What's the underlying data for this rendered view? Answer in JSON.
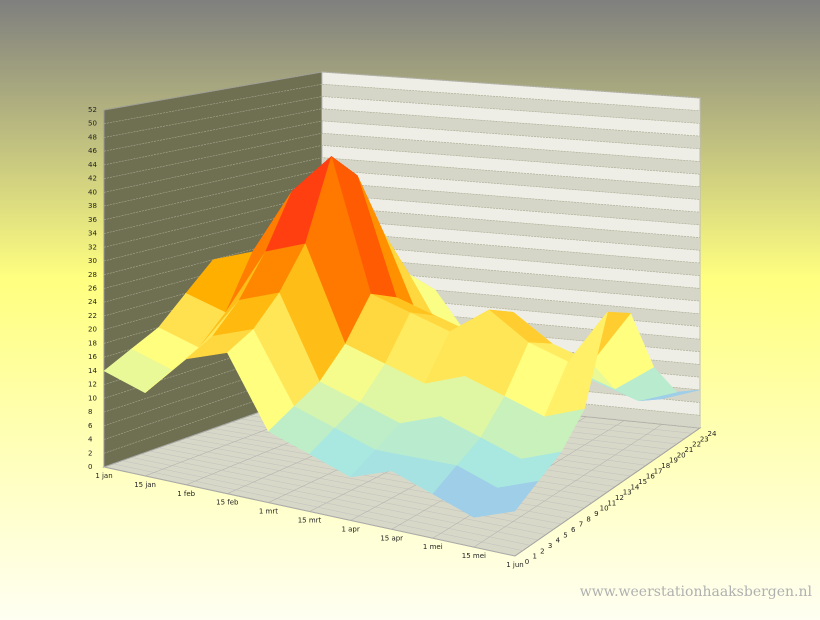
{
  "chart_data": {
    "type": "surface3d",
    "categories": [
      "1 jan",
      "15 jan",
      "1 feb",
      "15 feb",
      "1 mrt",
      "15 mrt",
      "1 apr",
      "15 apr",
      "1 mei",
      "15 mei",
      "1 jun"
    ],
    "hours": [
      0,
      3,
      6,
      9,
      12,
      15,
      18,
      21,
      24
    ],
    "values": [
      [
        14,
        16,
        18,
        22,
        26,
        24,
        18,
        14,
        12
      ],
      [
        12,
        14,
        16,
        20,
        28,
        26,
        20,
        16,
        14
      ],
      [
        18,
        20,
        24,
        30,
        38,
        34,
        26,
        20,
        16
      ],
      [
        20,
        22,
        26,
        32,
        44,
        40,
        30,
        22,
        18
      ],
      [
        10,
        12,
        14,
        18,
        24,
        22,
        16,
        12,
        10
      ],
      [
        8,
        10,
        12,
        16,
        22,
        20,
        14,
        10,
        8
      ],
      [
        6,
        8,
        10,
        14,
        20,
        18,
        12,
        8,
        6
      ],
      [
        8,
        8,
        12,
        16,
        24,
        22,
        14,
        10,
        8
      ],
      [
        6,
        8,
        10,
        14,
        20,
        18,
        12,
        8,
        6
      ],
      [
        4,
        6,
        8,
        12,
        18,
        16,
        10,
        6,
        4
      ],
      [
        6,
        8,
        10,
        14,
        26,
        24,
        14,
        8,
        6
      ]
    ],
    "ylim": [
      0,
      24
    ],
    "yticks": [
      0,
      1,
      2,
      3,
      4,
      5,
      6,
      7,
      8,
      9,
      10,
      11,
      12,
      13,
      14,
      15,
      16,
      17,
      18,
      19,
      20,
      21,
      22,
      23,
      24
    ],
    "zlim": [
      0,
      52
    ],
    "zticks": [
      0,
      2,
      4,
      6,
      8,
      10,
      12,
      14,
      16,
      18,
      20,
      22,
      24,
      26,
      28,
      30,
      32,
      34,
      36,
      38,
      40,
      42,
      44,
      46,
      48,
      50,
      52
    ],
    "colorscale": [
      "#7f7fff",
      "#a8e8e0",
      "#ffff80",
      "#ffb000",
      "#ff6000",
      "#ff2020",
      "#c000a0"
    ],
    "watermark": "www.weerstationhaaksbergen.nl"
  }
}
